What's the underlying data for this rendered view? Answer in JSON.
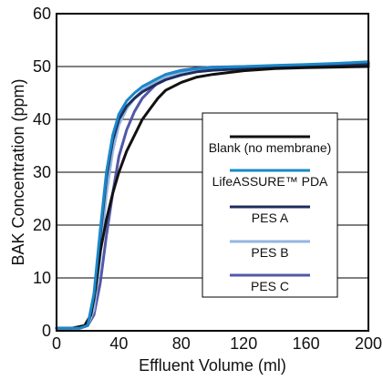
{
  "chart_data": {
    "type": "line",
    "title": "",
    "xlabel": "Effluent Volume (ml)",
    "ylabel": "BAK Concentration (ppm)",
    "xlim": [
      0,
      200
    ],
    "ylim": [
      0,
      60
    ],
    "xticks": [
      0,
      40,
      80,
      120,
      160,
      200
    ],
    "yticks": [
      0,
      10,
      20,
      30,
      40,
      50,
      60
    ],
    "grid": "horizontal",
    "legend_position": "center-right",
    "series": [
      {
        "name": "Blank (no membrane)",
        "color": "#111111",
        "x": [
          0,
          10,
          18,
          22,
          25,
          28,
          32,
          36,
          40,
          45,
          50,
          55,
          60,
          65,
          70,
          80,
          90,
          100,
          120,
          140,
          160,
          180,
          200
        ],
        "y": [
          0.5,
          0.5,
          1,
          3,
          8,
          15,
          21,
          26,
          30,
          34,
          37,
          40,
          42,
          44,
          45.5,
          47,
          48,
          48.5,
          49.2,
          49.6,
          49.8,
          49.9,
          50
        ]
      },
      {
        "name": "LifeASSURE™ PDA",
        "color": "#1a88c9",
        "x": [
          0,
          15,
          20,
          24,
          28,
          32,
          36,
          40,
          45,
          50,
          55,
          60,
          65,
          70,
          80,
          90,
          100,
          120,
          140,
          160,
          180,
          200
        ],
        "y": [
          0.5,
          0.5,
          1,
          7,
          19,
          30,
          37,
          41,
          43.5,
          45,
          46.2,
          47,
          47.8,
          48.5,
          49.2,
          49.6,
          49.8,
          50,
          50.2,
          50.4,
          50.6,
          50.9
        ]
      },
      {
        "name": "PES A",
        "color": "#1f2d5c",
        "x": [
          0,
          15,
          20,
          24,
          28,
          32,
          36,
          40,
          45,
          50,
          55,
          60,
          65,
          70,
          80,
          90,
          100,
          120,
          140,
          160,
          180,
          200
        ],
        "y": [
          0.5,
          0.5,
          1,
          6,
          18,
          29,
          36,
          40,
          42.5,
          44,
          45.2,
          46,
          46.8,
          47.5,
          48.4,
          49,
          49.3,
          49.6,
          49.8,
          50,
          50.2,
          50.5
        ]
      },
      {
        "name": "PES B",
        "color": "#93b6e0",
        "x": [
          0,
          15,
          20,
          24,
          28,
          32,
          36,
          40,
          45,
          50,
          55,
          60,
          65,
          70,
          80,
          90,
          100,
          120,
          140,
          160,
          180,
          200
        ],
        "y": [
          0.5,
          0.5,
          1,
          4,
          14,
          26,
          34,
          39,
          42,
          44,
          45.5,
          46.5,
          47.3,
          48,
          48.8,
          49.3,
          49.6,
          49.9,
          50.1,
          50.3,
          50.5,
          50.8
        ]
      },
      {
        "name": "PES C",
        "color": "#5258a8",
        "x": [
          0,
          15,
          20,
          24,
          28,
          32,
          36,
          40,
          45,
          50,
          55,
          60,
          65,
          70,
          80,
          90,
          100,
          120,
          140,
          160,
          180,
          200
        ],
        "y": [
          0.5,
          0.5,
          1,
          3,
          9,
          18,
          26,
          33,
          38,
          41.5,
          44,
          45.5,
          47,
          48.5,
          49.3,
          49.7,
          49.9,
          50,
          50.1,
          50.2,
          50.3,
          50.4
        ]
      }
    ]
  }
}
